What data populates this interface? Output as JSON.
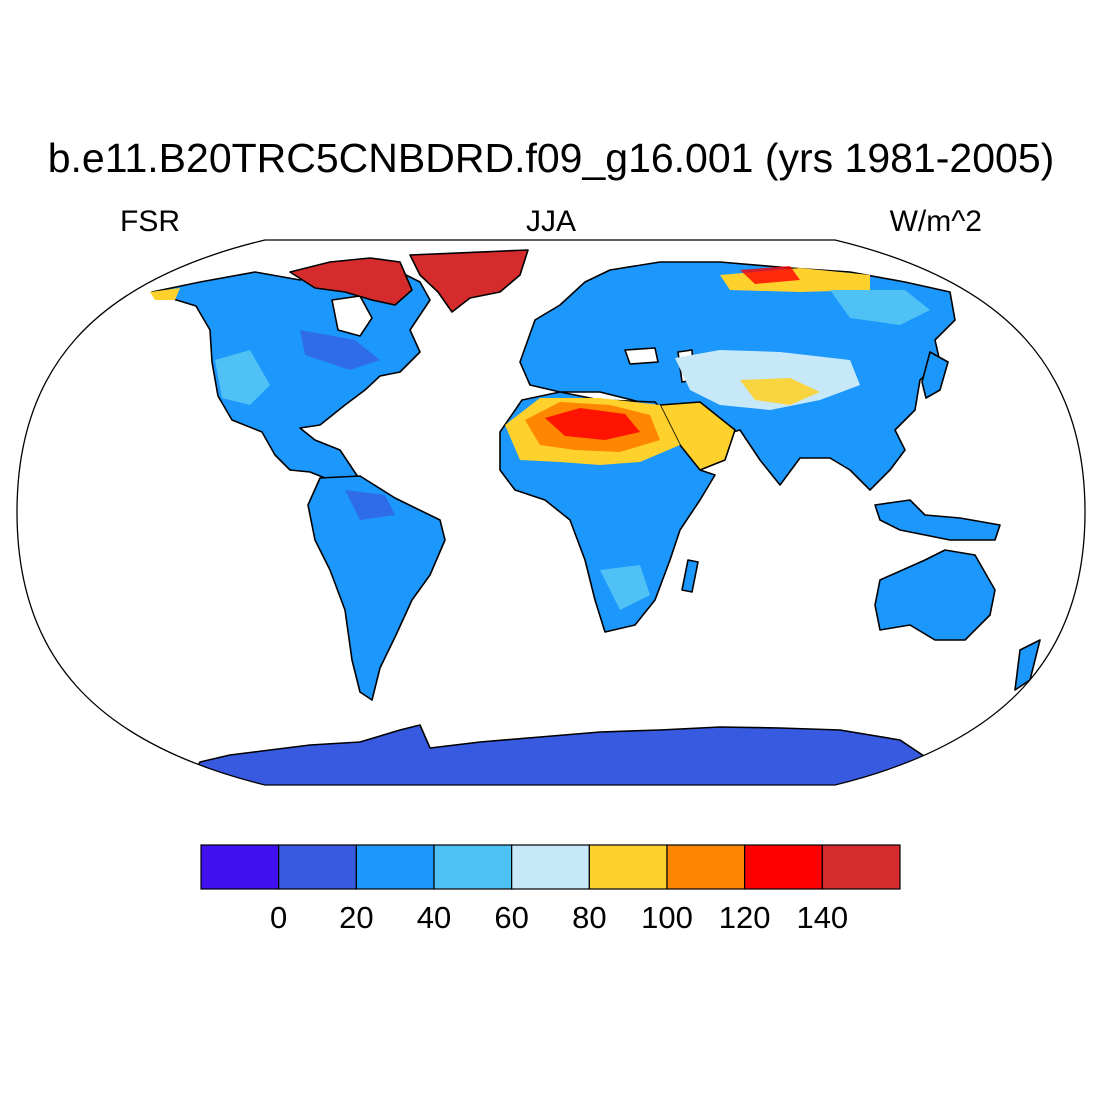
{
  "header": {
    "title": "b.e11.B20TRC5CNBDRD.f09_g16.001 (yrs 1981-2005)",
    "variable": "FSR",
    "season": "JJA",
    "units": "W/m^2"
  },
  "map": {
    "projection": "Robinson",
    "field": "FSR",
    "land_only": true
  },
  "legend": {
    "bins": [
      {
        "color": "#4010f0"
      },
      {
        "color": "#375ae1"
      },
      {
        "color": "#1c97fb"
      },
      {
        "color": "#4fc1f5"
      },
      {
        "color": "#c7e8f8"
      },
      {
        "color": "#fed12c"
      },
      {
        "color": "#ff8600"
      },
      {
        "color": "#fe0000"
      },
      {
        "color": "#d62b2c"
      }
    ],
    "labels": [
      "0",
      "20",
      "40",
      "60",
      "80",
      "100",
      "120",
      "140"
    ]
  }
}
